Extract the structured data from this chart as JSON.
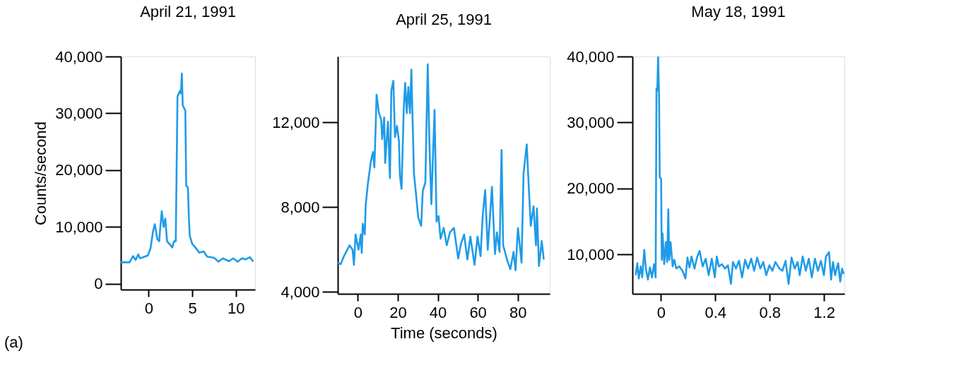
{
  "chart_data": [
    {
      "type": "line",
      "title": "April 21, 1991",
      "ylabel": "Counts/second",
      "xlim": [
        -3.2,
        12.2
      ],
      "xticks": [
        0,
        5,
        10
      ],
      "ylim": [
        -1000,
        40000
      ],
      "yticks": [
        0,
        {
          "value": 10000,
          "label": "10,000"
        },
        {
          "value": 20000,
          "label": "20,000"
        },
        {
          "value": 30000,
          "label": "30,000"
        },
        {
          "value": 40000,
          "label": "40,000"
        }
      ],
      "annotations": [
        "(a)"
      ],
      "x": [
        -3.2,
        -2.2,
        -1.8,
        -1.5,
        -1.2,
        -1.0,
        -0.1,
        0.2,
        0.5,
        0.7,
        1.0,
        1.2,
        1.3,
        1.5,
        1.7,
        1.9,
        2.1,
        2.4,
        2.7,
        2.9,
        3.1,
        3.3,
        3.6,
        3.7,
        3.8,
        3.9,
        4.2,
        4.3,
        4.5,
        4.6,
        4.7,
        5.0,
        5.3,
        5.8,
        6.3,
        6.7,
        7.5,
        8.0,
        8.5,
        9.2,
        9.7,
        10.2,
        10.7,
        11.1,
        11.6,
        12.0
      ],
      "series": [
        {
          "color": "#1f9be8",
          "values": [
            3800,
            3800,
            4900,
            4200,
            5200,
            4500,
            5000,
            6200,
            9300,
            10500,
            7800,
            7500,
            9500,
            12800,
            10000,
            11500,
            7500,
            7000,
            6400,
            7500,
            7500,
            33000,
            34000,
            33500,
            37000,
            31400,
            30500,
            17200,
            17000,
            11800,
            8500,
            7000,
            6500,
            5500,
            5700,
            4800,
            4600,
            3900,
            4500,
            4000,
            4500,
            3900,
            4500,
            4300,
            4700,
            3900
          ]
        }
      ]
    },
    {
      "type": "line",
      "title": "April 25, 1991",
      "xlabel": "Time (seconds)",
      "xlim": [
        -10,
        96
      ],
      "xticks": [
        0,
        20,
        40,
        60,
        80
      ],
      "ylim": [
        3900,
        15100
      ],
      "yticks": [
        {
          "value": 4000,
          "label": "4,000"
        },
        {
          "value": 8000,
          "label": "8,000"
        },
        {
          "value": 12000,
          "label": "12,000"
        }
      ],
      "x": [
        -10,
        -8.5,
        -6.9,
        -4.1,
        -2.6,
        -1.9,
        -1.1,
        0.4,
        1.5,
        2.0,
        2.5,
        3.5,
        4.0,
        5.0,
        6.6,
        7.6,
        8.3,
        8.9,
        9.4,
        10.6,
        11.7,
        12.2,
        13.2,
        13.7,
        15.1,
        16.1,
        16.8,
        17.8,
        18.6,
        19.6,
        20.6,
        21.1,
        21.9,
        23.0,
        23.7,
        24.5,
        25.3,
        26.1,
        26.8,
        28.1,
        29.1,
        30.2,
        31.7,
        32.5,
        33.8,
        35.0,
        35.8,
        36.8,
        38.4,
        39.4,
        40.4,
        41.4,
        43.0,
        44.5,
        46.1,
        48.1,
        50.2,
        51.7,
        53.2,
        54.8,
        56.3,
        58.4,
        59.9,
        61.4,
        62.5,
        63.7,
        65.0,
        67.1,
        68.6,
        69.6,
        70.9,
        71.9,
        72.7,
        74.8,
        76.3,
        77.9,
        78.9,
        80.1,
        81.9,
        82.9,
        84.5,
        85.5,
        86.5,
        87.9,
        89.1,
        89.6,
        90.6,
        92.0,
        93.0
      ],
      "series": [
        {
          "color": "#1f9be8",
          "values": [
            5370,
            5300,
            5680,
            6190,
            5980,
            5270,
            6700,
            5980,
            6700,
            5830,
            7210,
            6700,
            8130,
            9050,
            10180,
            10590,
            9870,
            11610,
            13300,
            12430,
            12120,
            11200,
            12220,
            10080,
            12020,
            9360,
            13500,
            13960,
            11300,
            11820,
            11100,
            9460,
            8850,
            12640,
            13860,
            12430,
            13660,
            12430,
            14480,
            9570,
            8640,
            7520,
            7110,
            8750,
            9150,
            14730,
            11100,
            8130,
            12580,
            7310,
            7570,
            6500,
            7010,
            6190,
            6800,
            7010,
            5570,
            6290,
            6700,
            5520,
            6600,
            5270,
            6600,
            5680,
            7620,
            8800,
            5980,
            8950,
            5780,
            6800,
            5880,
            10690,
            6190,
            5470,
            5060,
            5880,
            5010,
            7010,
            5370,
            9570,
            10950,
            8950,
            7110,
            8030,
            6190,
            7930,
            5210,
            6390,
            5520
          ]
        }
      ]
    },
    {
      "type": "line",
      "title": "May 18, 1991",
      "xlim": [
        -0.21,
        1.35
      ],
      "xticks": [
        0,
        0.4,
        0.8,
        1.2
      ],
      "ylim": [
        4000,
        40000
      ],
      "yticks": [
        {
          "value": 10000,
          "label": "10,000"
        },
        {
          "value": 20000,
          "label": "20,000"
        },
        {
          "value": 30000,
          "label": "30,000"
        },
        {
          "value": 40000,
          "label": "40,000"
        }
      ],
      "x": [
        -0.186,
        -0.174,
        -0.163,
        -0.149,
        -0.138,
        -0.123,
        -0.111,
        -0.096,
        -0.081,
        -0.066,
        -0.051,
        -0.039,
        -0.033,
        -0.027,
        -0.021,
        -0.014,
        -0.009,
        0.001,
        0.006,
        0.012,
        0.024,
        0.036,
        0.046,
        0.054,
        0.061,
        0.071,
        0.086,
        0.098,
        0.113,
        0.135,
        0.158,
        0.18,
        0.195,
        0.21,
        0.225,
        0.247,
        0.265,
        0.284,
        0.307,
        0.329,
        0.351,
        0.374,
        0.396,
        0.411,
        0.426,
        0.448,
        0.471,
        0.493,
        0.515,
        0.53,
        0.552,
        0.574,
        0.597,
        0.619,
        0.641,
        0.664,
        0.686,
        0.708,
        0.731,
        0.753,
        0.775,
        0.798,
        0.82,
        0.842,
        0.872,
        0.894,
        0.917,
        0.939,
        0.961,
        0.984,
        1.006,
        1.021,
        1.043,
        1.066,
        1.088,
        1.11,
        1.133,
        1.155,
        1.177,
        1.199,
        1.214,
        1.237,
        1.252,
        1.266,
        1.281,
        1.304,
        1.319,
        1.333,
        1.345
      ],
      "series": [
        {
          "color": "#1f9be8",
          "values": [
            6830,
            8660,
            6330,
            8160,
            6500,
            10660,
            7830,
            6160,
            8000,
            6500,
            8500,
            6500,
            35160,
            34830,
            40000,
            34160,
            21660,
            21500,
            9160,
            13160,
            8500,
            11830,
            8830,
            16830,
            9160,
            11830,
            8160,
            9160,
            7830,
            8160,
            7500,
            6330,
            9500,
            8000,
            9660,
            7830,
            9500,
            10500,
            8160,
            9330,
            6830,
            9330,
            6500,
            9660,
            8160,
            8500,
            7830,
            8330,
            5500,
            8830,
            7830,
            9000,
            6500,
            9160,
            7830,
            9330,
            7500,
            9500,
            7830,
            8830,
            6830,
            8330,
            7500,
            8830,
            7830,
            7500,
            9000,
            5500,
            9500,
            7830,
            8830,
            6830,
            9660,
            7500,
            9330,
            6500,
            9330,
            7500,
            9000,
            6830,
            9660,
            10330,
            6160,
            8830,
            6830,
            8660,
            5830,
            7830,
            7000
          ]
        }
      ]
    }
  ]
}
